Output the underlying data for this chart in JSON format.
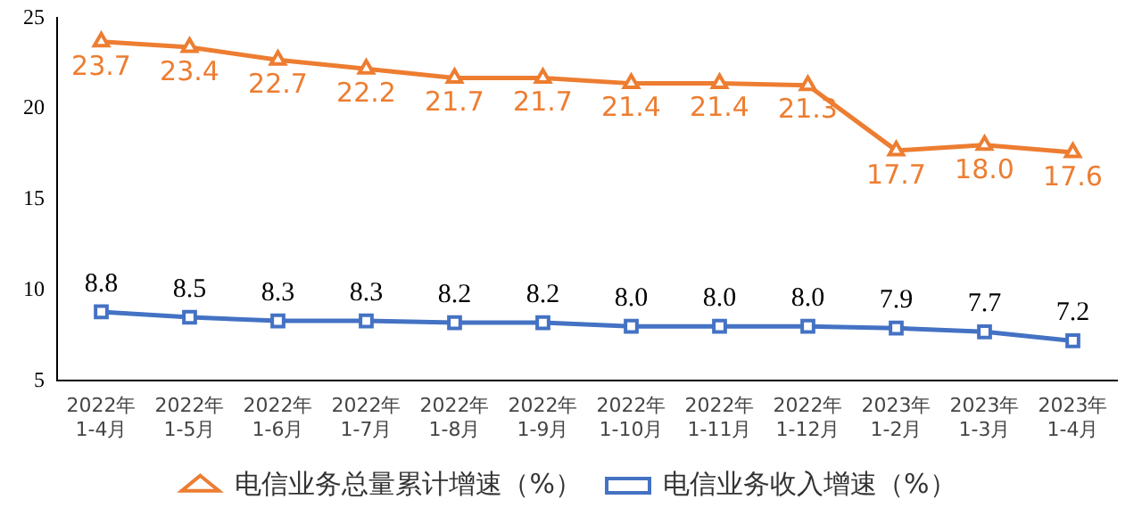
{
  "chart_data": {
    "type": "line",
    "categories": [
      "2022年\n1-4月",
      "2022年\n1-5月",
      "2022年\n1-6月",
      "2022年\n1-7月",
      "2022年\n1-8月",
      "2022年\n1-9月",
      "2022年\n1-10月",
      "2022年\n1-11月",
      "2022年\n1-12月",
      "2023年\n1-2月",
      "2023年\n1-3月",
      "2023年\n1-4月"
    ],
    "series": [
      {
        "name": "电信业务总量累计增速（%）",
        "color": "#ed7d31",
        "marker": "triangle",
        "values": [
          23.7,
          23.4,
          22.7,
          22.2,
          21.7,
          21.7,
          21.4,
          21.4,
          21.3,
          17.7,
          18.0,
          17.6
        ],
        "value_labels": [
          "23.7",
          "23.4",
          "22.7",
          "22.2",
          "21.7",
          "21.7",
          "21.4",
          "21.4",
          "21.3",
          "17.7",
          "18.0",
          "17.6"
        ]
      },
      {
        "name": "电信业务收入增速（%）",
        "color": "#4472c4",
        "marker": "square",
        "values": [
          8.8,
          8.5,
          8.3,
          8.3,
          8.2,
          8.2,
          8.0,
          8.0,
          8.0,
          7.9,
          7.7,
          7.2
        ],
        "value_labels": [
          "8.8",
          "8.5",
          "8.3",
          "8.3",
          "8.2",
          "8.2",
          "8.0",
          "8.0",
          "8.0",
          "7.9",
          "7.7",
          "7.2"
        ]
      }
    ],
    "ylim": [
      5,
      25
    ],
    "yticks": [
      5,
      10,
      15,
      20,
      25
    ],
    "grid": false,
    "legend": "bottom"
  }
}
